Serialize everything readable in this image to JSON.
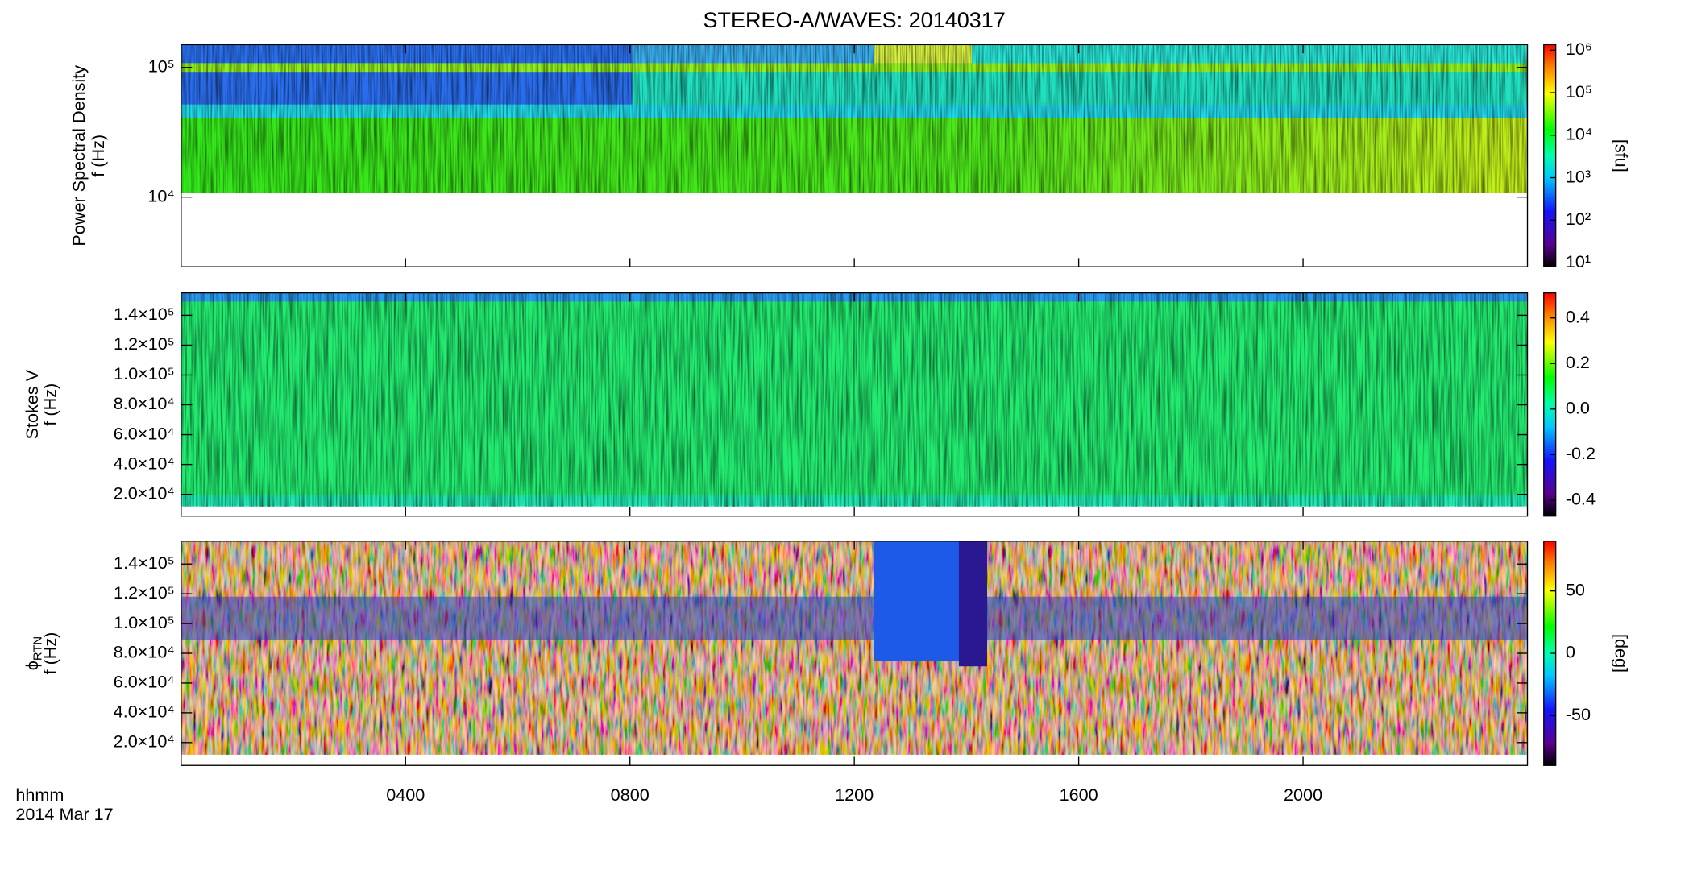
{
  "title": "STEREO-A/WAVES: 20140317",
  "chart_data": [
    {
      "type": "heatmap",
      "ylabel": "Power Spectral Density",
      "ylabel2": "f (Hz)",
      "log_y": true,
      "ylim": [
        2900,
        150000
      ],
      "yticks": [
        {
          "value": 10000,
          "label": "10⁴"
        },
        {
          "value": 100000,
          "label": "10⁵"
        }
      ],
      "cbar_log": true,
      "clim": [
        8,
        1350000
      ],
      "cbar_label": "[sfu]",
      "cticks": [
        {
          "value": 10,
          "label": "10¹"
        },
        {
          "value": 100,
          "label": "10²"
        },
        {
          "value": 1000,
          "label": "10³"
        },
        {
          "value": 10000,
          "label": "10⁴"
        },
        {
          "value": 100000,
          "label": "10⁵"
        },
        {
          "value": 1000000,
          "label": "10⁶"
        }
      ]
    },
    {
      "type": "heatmap",
      "ylabel": "Stokes V",
      "ylabel2": "f (Hz)",
      "log_y": false,
      "ylim": [
        5400,
        155000
      ],
      "yticks": [
        {
          "value": 20000,
          "label": "2.0×10⁴"
        },
        {
          "value": 40000,
          "label": "4.0×10⁴"
        },
        {
          "value": 60000,
          "label": "6.0×10⁴"
        },
        {
          "value": 80000,
          "label": "8.0×10⁴"
        },
        {
          "value": 100000,
          "label": "1.0×10⁵"
        },
        {
          "value": 120000,
          "label": "1.2×10⁵"
        },
        {
          "value": 140000,
          "label": "1.4×10⁵"
        }
      ],
      "cbar_log": false,
      "clim": [
        -0.47,
        0.51
      ],
      "cticks": [
        {
          "value": -0.4,
          "label": "-0.4"
        },
        {
          "value": -0.2,
          "label": "-0.2"
        },
        {
          "value": 0,
          "label": "0.0"
        },
        0.2,
        0.4
      ]
    },
    {
      "type": "heatmap",
      "ylabel": "ϕ",
      "ylabel_sub": "RTN",
      "ylabel2": "f (Hz)",
      "log_y": false,
      "ylim": [
        4600,
        155400
      ],
      "yticks": [
        {
          "value": 20000,
          "label": "2.0×10⁴"
        },
        {
          "value": 40000,
          "label": "4.0×10⁴"
        },
        {
          "value": 60000,
          "label": "6.0×10⁴"
        },
        {
          "value": 80000,
          "label": "8.0×10⁴"
        },
        {
          "value": 100000,
          "label": "1.0×10⁵"
        },
        {
          "value": 120000,
          "label": "1.2×10⁵"
        },
        {
          "value": 140000,
          "label": "1.4×10⁵"
        }
      ],
      "cbar_log": false,
      "clim": [
        -90,
        90
      ],
      "cbar_label": "[deg]",
      "cticks": [
        -50,
        0,
        50
      ],
      "xlim": [
        0,
        24
      ],
      "xticks": [
        {
          "value": 4,
          "label": "0400"
        },
        {
          "value": 8,
          "label": "0800"
        },
        {
          "value": 12,
          "label": "1200"
        },
        {
          "value": 16,
          "label": "1600"
        },
        {
          "value": 20,
          "label": "2000"
        }
      ],
      "x_label": "hhmm",
      "date_label": "2014 Mar 17"
    }
  ]
}
